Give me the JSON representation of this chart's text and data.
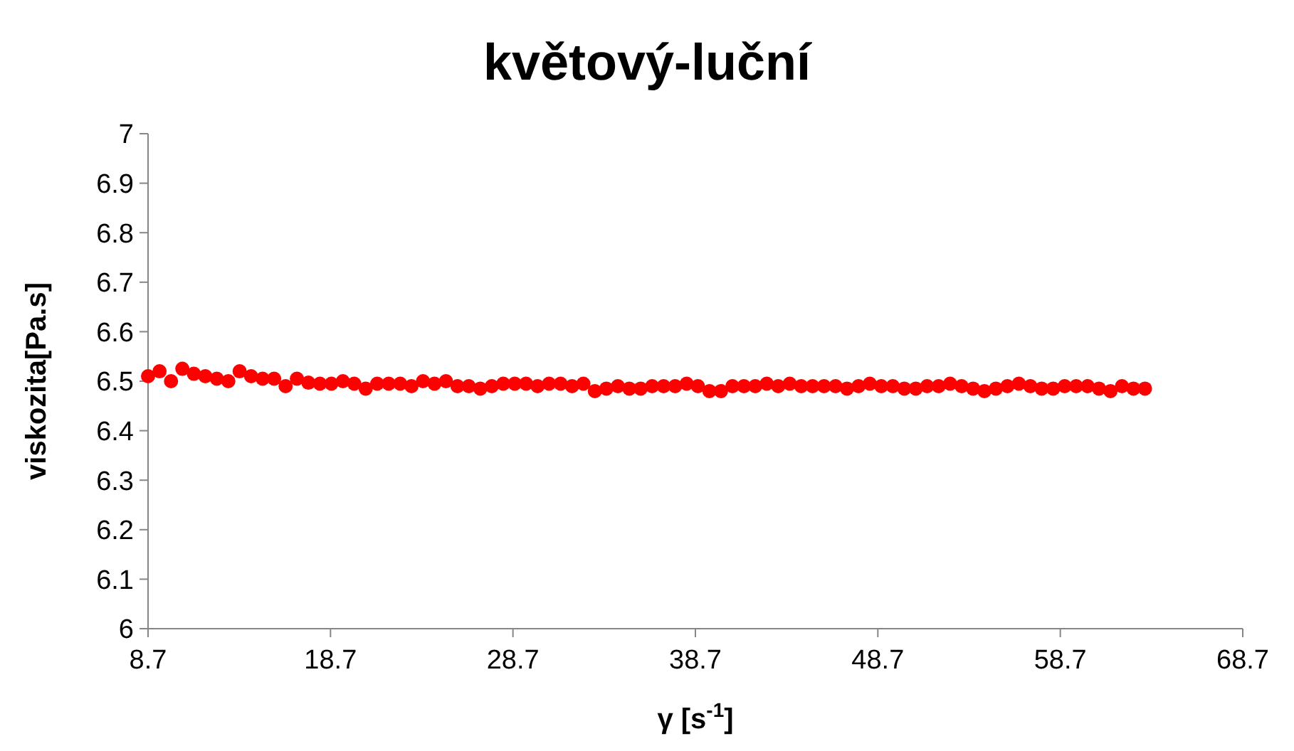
{
  "chart_data": {
    "type": "scatter",
    "title": "květový-luční",
    "xlabel": "γ [s$^{-1}$]",
    "ylabel": "viskozita[Pa.s]",
    "xlim": [
      8.7,
      68.7
    ],
    "xticks": [
      8.7,
      18.7,
      28.7,
      38.7,
      48.7,
      58.7,
      68.7
    ],
    "ylim": [
      6,
      7
    ],
    "yticks": [
      6,
      6.1,
      6.2,
      6.3,
      6.4,
      6.5,
      6.6,
      6.7,
      6.8,
      6.9,
      7
    ],
    "grid": false,
    "marker": "circle",
    "series": [
      {
        "color": "#ff0000",
        "x": [
          8.7,
          9.33,
          9.96,
          10.58,
          11.21,
          11.84,
          12.47,
          13.1,
          13.72,
          14.35,
          14.98,
          15.61,
          16.24,
          16.86,
          17.49,
          18.12,
          18.75,
          19.38,
          20.0,
          20.63,
          21.26,
          21.89,
          22.52,
          23.14,
          23.77,
          24.4,
          25.03,
          25.66,
          26.28,
          26.91,
          27.54,
          28.17,
          28.8,
          29.42,
          30.05,
          30.68,
          31.31,
          31.94,
          32.56,
          33.19,
          33.82,
          34.45,
          35.08,
          35.7,
          36.33,
          36.96,
          37.59,
          38.22,
          38.84,
          39.47,
          40.1,
          40.73,
          41.36,
          41.98,
          42.61,
          43.24,
          43.87,
          44.5,
          45.12,
          45.75,
          46.38,
          47.01,
          47.64,
          48.26,
          48.89,
          49.52,
          50.15,
          50.78,
          51.4,
          52.03,
          52.66,
          53.29,
          53.92,
          54.54,
          55.17,
          55.8,
          56.43,
          57.06,
          57.68,
          58.31,
          58.94,
          59.57,
          60.2,
          60.82,
          61.45,
          62.08,
          62.71,
          63.34
        ],
        "values": [
          6.51,
          6.52,
          6.5,
          6.525,
          6.515,
          6.51,
          6.505,
          6.5,
          6.52,
          6.51,
          6.505,
          6.505,
          6.49,
          6.505,
          6.497,
          6.495,
          6.495,
          6.5,
          6.495,
          6.485,
          6.495,
          6.495,
          6.495,
          6.49,
          6.5,
          6.495,
          6.5,
          6.49,
          6.49,
          6.485,
          6.49,
          6.495,
          6.495,
          6.495,
          6.49,
          6.495,
          6.495,
          6.49,
          6.495,
          6.48,
          6.485,
          6.49,
          6.485,
          6.485,
          6.49,
          6.49,
          6.49,
          6.495,
          6.49,
          6.48,
          6.48,
          6.49,
          6.49,
          6.49,
          6.495,
          6.49,
          6.495,
          6.49,
          6.49,
          6.49,
          6.49,
          6.485,
          6.49,
          6.495,
          6.49,
          6.49,
          6.485,
          6.485,
          6.49,
          6.49,
          6.495,
          6.49,
          6.485,
          6.48,
          6.485,
          6.49,
          6.495,
          6.49,
          6.485,
          6.485,
          6.49,
          6.49,
          6.49,
          6.485,
          6.48,
          6.49,
          6.485,
          6.485
        ]
      }
    ]
  }
}
